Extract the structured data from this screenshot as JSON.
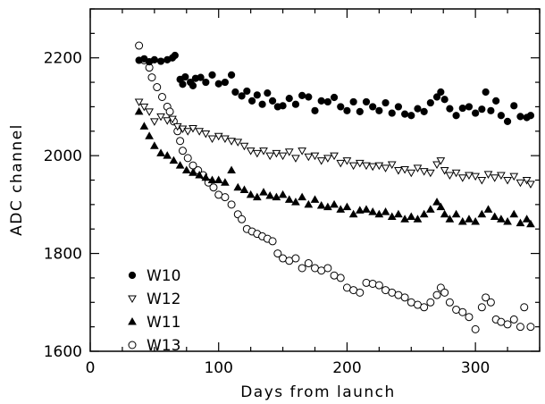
{
  "chart_data": {
    "type": "scatter",
    "title": "",
    "xlabel": "Days from launch",
    "ylabel": "ADC channel",
    "xlim": [
      0,
      350
    ],
    "ylim": [
      1600,
      2300
    ],
    "xticks": [
      0,
      100,
      200,
      300
    ],
    "yticks": [
      1600,
      1800,
      2000,
      2200
    ],
    "grid": false,
    "legend_position": "lower-left",
    "series": [
      {
        "name": "W10",
        "marker": "filled-circle",
        "points": [
          [
            38,
            2195
          ],
          [
            42,
            2198
          ],
          [
            46,
            2192
          ],
          [
            50,
            2196
          ],
          [
            55,
            2193
          ],
          [
            60,
            2196
          ],
          [
            64,
            2200
          ],
          [
            66,
            2205
          ],
          [
            70,
            2156
          ],
          [
            72,
            2146
          ],
          [
            74,
            2161
          ],
          [
            78,
            2150
          ],
          [
            80,
            2143
          ],
          [
            82,
            2158
          ],
          [
            86,
            2160
          ],
          [
            90,
            2150
          ],
          [
            95,
            2165
          ],
          [
            100,
            2147
          ],
          [
            105,
            2150
          ],
          [
            110,
            2165
          ],
          [
            113,
            2130
          ],
          [
            118,
            2122
          ],
          [
            122,
            2132
          ],
          [
            126,
            2112
          ],
          [
            130,
            2124
          ],
          [
            134,
            2105
          ],
          [
            138,
            2128
          ],
          [
            142,
            2112
          ],
          [
            146,
            2100
          ],
          [
            150,
            2102
          ],
          [
            155,
            2117
          ],
          [
            160,
            2105
          ],
          [
            165,
            2123
          ],
          [
            170,
            2120
          ],
          [
            175,
            2092
          ],
          [
            180,
            2112
          ],
          [
            185,
            2110
          ],
          [
            190,
            2119
          ],
          [
            195,
            2100
          ],
          [
            200,
            2092
          ],
          [
            205,
            2110
          ],
          [
            210,
            2090
          ],
          [
            215,
            2110
          ],
          [
            220,
            2100
          ],
          [
            225,
            2092
          ],
          [
            230,
            2108
          ],
          [
            235,
            2087
          ],
          [
            240,
            2100
          ],
          [
            245,
            2085
          ],
          [
            250,
            2082
          ],
          [
            255,
            2096
          ],
          [
            260,
            2090
          ],
          [
            265,
            2108
          ],
          [
            270,
            2120
          ],
          [
            273,
            2130
          ],
          [
            276,
            2115
          ],
          [
            280,
            2096
          ],
          [
            285,
            2082
          ],
          [
            290,
            2097
          ],
          [
            295,
            2100
          ],
          [
            300,
            2087
          ],
          [
            305,
            2095
          ],
          [
            308,
            2130
          ],
          [
            312,
            2092
          ],
          [
            316,
            2112
          ],
          [
            320,
            2082
          ],
          [
            325,
            2070
          ],
          [
            330,
            2102
          ],
          [
            335,
            2080
          ],
          [
            340,
            2078
          ],
          [
            343,
            2082
          ]
        ]
      },
      {
        "name": "W12",
        "marker": "open-triangle-down",
        "points": [
          [
            38,
            2110
          ],
          [
            42,
            2100
          ],
          [
            46,
            2090
          ],
          [
            50,
            2070
          ],
          [
            55,
            2080
          ],
          [
            60,
            2072
          ],
          [
            64,
            2075
          ],
          [
            68,
            2060
          ],
          [
            72,
            2055
          ],
          [
            76,
            2050
          ],
          [
            80,
            2056
          ],
          [
            85,
            2050
          ],
          [
            90,
            2045
          ],
          [
            95,
            2035
          ],
          [
            100,
            2040
          ],
          [
            105,
            2035
          ],
          [
            110,
            2030
          ],
          [
            115,
            2028
          ],
          [
            120,
            2020
          ],
          [
            125,
            2010
          ],
          [
            130,
            2005
          ],
          [
            135,
            2010
          ],
          [
            140,
            2000
          ],
          [
            145,
            2005
          ],
          [
            150,
            2000
          ],
          [
            155,
            2008
          ],
          [
            160,
            1995
          ],
          [
            165,
            2010
          ],
          [
            170,
            1998
          ],
          [
            175,
            2000
          ],
          [
            180,
            1990
          ],
          [
            185,
            1995
          ],
          [
            190,
            2000
          ],
          [
            195,
            1985
          ],
          [
            200,
            1990
          ],
          [
            205,
            1980
          ],
          [
            210,
            1985
          ],
          [
            215,
            1980
          ],
          [
            220,
            1978
          ],
          [
            225,
            1980
          ],
          [
            230,
            1975
          ],
          [
            235,
            1982
          ],
          [
            240,
            1970
          ],
          [
            245,
            1972
          ],
          [
            250,
            1965
          ],
          [
            255,
            1975
          ],
          [
            260,
            1968
          ],
          [
            265,
            1965
          ],
          [
            270,
            1982
          ],
          [
            273,
            1990
          ],
          [
            276,
            1970
          ],
          [
            280,
            1960
          ],
          [
            285,
            1965
          ],
          [
            290,
            1955
          ],
          [
            295,
            1960
          ],
          [
            300,
            1958
          ],
          [
            305,
            1950
          ],
          [
            310,
            1962
          ],
          [
            315,
            1955
          ],
          [
            320,
            1960
          ],
          [
            325,
            1950
          ],
          [
            330,
            1958
          ],
          [
            335,
            1945
          ],
          [
            340,
            1950
          ],
          [
            343,
            1942
          ]
        ]
      },
      {
        "name": "W11",
        "marker": "filled-triangle-up",
        "points": [
          [
            38,
            2090
          ],
          [
            42,
            2060
          ],
          [
            46,
            2040
          ],
          [
            50,
            2020
          ],
          [
            55,
            2005
          ],
          [
            60,
            2000
          ],
          [
            65,
            1990
          ],
          [
            70,
            1980
          ],
          [
            75,
            1970
          ],
          [
            80,
            1965
          ],
          [
            85,
            1960
          ],
          [
            90,
            1955
          ],
          [
            95,
            1950
          ],
          [
            100,
            1950
          ],
          [
            105,
            1945
          ],
          [
            110,
            1970
          ],
          [
            115,
            1935
          ],
          [
            120,
            1930
          ],
          [
            125,
            1920
          ],
          [
            130,
            1915
          ],
          [
            135,
            1925
          ],
          [
            140,
            1918
          ],
          [
            145,
            1915
          ],
          [
            150,
            1920
          ],
          [
            155,
            1910
          ],
          [
            160,
            1905
          ],
          [
            165,
            1915
          ],
          [
            170,
            1900
          ],
          [
            175,
            1910
          ],
          [
            180,
            1898
          ],
          [
            185,
            1895
          ],
          [
            190,
            1900
          ],
          [
            195,
            1890
          ],
          [
            200,
            1895
          ],
          [
            205,
            1880
          ],
          [
            210,
            1888
          ],
          [
            215,
            1890
          ],
          [
            220,
            1885
          ],
          [
            225,
            1880
          ],
          [
            230,
            1885
          ],
          [
            235,
            1875
          ],
          [
            240,
            1880
          ],
          [
            245,
            1870
          ],
          [
            250,
            1875
          ],
          [
            255,
            1870
          ],
          [
            260,
            1880
          ],
          [
            265,
            1890
          ],
          [
            270,
            1905
          ],
          [
            273,
            1895
          ],
          [
            276,
            1880
          ],
          [
            280,
            1870
          ],
          [
            285,
            1880
          ],
          [
            290,
            1865
          ],
          [
            295,
            1870
          ],
          [
            300,
            1865
          ],
          [
            305,
            1880
          ],
          [
            310,
            1890
          ],
          [
            315,
            1875
          ],
          [
            320,
            1870
          ],
          [
            325,
            1865
          ],
          [
            330,
            1880
          ],
          [
            335,
            1862
          ],
          [
            340,
            1870
          ],
          [
            343,
            1860
          ]
        ]
      },
      {
        "name": "W13",
        "marker": "open-circle",
        "points": [
          [
            38,
            2225
          ],
          [
            42,
            2195
          ],
          [
            46,
            2180
          ],
          [
            48,
            2160
          ],
          [
            52,
            2140
          ],
          [
            56,
            2120
          ],
          [
            60,
            2100
          ],
          [
            62,
            2090
          ],
          [
            65,
            2070
          ],
          [
            68,
            2050
          ],
          [
            70,
            2030
          ],
          [
            72,
            2010
          ],
          [
            76,
            1995
          ],
          [
            80,
            1980
          ],
          [
            84,
            1970
          ],
          [
            88,
            1960
          ],
          [
            92,
            1945
          ],
          [
            96,
            1935
          ],
          [
            100,
            1920
          ],
          [
            105,
            1915
          ],
          [
            110,
            1900
          ],
          [
            115,
            1880
          ],
          [
            118,
            1870
          ],
          [
            122,
            1850
          ],
          [
            126,
            1845
          ],
          [
            130,
            1840
          ],
          [
            134,
            1835
          ],
          [
            138,
            1830
          ],
          [
            142,
            1825
          ],
          [
            146,
            1800
          ],
          [
            150,
            1790
          ],
          [
            155,
            1785
          ],
          [
            160,
            1790
          ],
          [
            165,
            1770
          ],
          [
            170,
            1780
          ],
          [
            175,
            1770
          ],
          [
            180,
            1765
          ],
          [
            185,
            1770
          ],
          [
            190,
            1755
          ],
          [
            195,
            1750
          ],
          [
            200,
            1730
          ],
          [
            205,
            1725
          ],
          [
            210,
            1720
          ],
          [
            215,
            1740
          ],
          [
            220,
            1738
          ],
          [
            225,
            1735
          ],
          [
            230,
            1725
          ],
          [
            235,
            1720
          ],
          [
            240,
            1715
          ],
          [
            245,
            1710
          ],
          [
            250,
            1700
          ],
          [
            255,
            1695
          ],
          [
            260,
            1690
          ],
          [
            265,
            1700
          ],
          [
            270,
            1715
          ],
          [
            273,
            1730
          ],
          [
            276,
            1720
          ],
          [
            280,
            1700
          ],
          [
            285,
            1685
          ],
          [
            290,
            1680
          ],
          [
            295,
            1670
          ],
          [
            300,
            1645
          ],
          [
            305,
            1690
          ],
          [
            308,
            1710
          ],
          [
            312,
            1700
          ],
          [
            316,
            1665
          ],
          [
            320,
            1660
          ],
          [
            325,
            1655
          ],
          [
            330,
            1665
          ],
          [
            335,
            1650
          ],
          [
            338,
            1690
          ],
          [
            343,
            1650
          ]
        ]
      }
    ]
  }
}
